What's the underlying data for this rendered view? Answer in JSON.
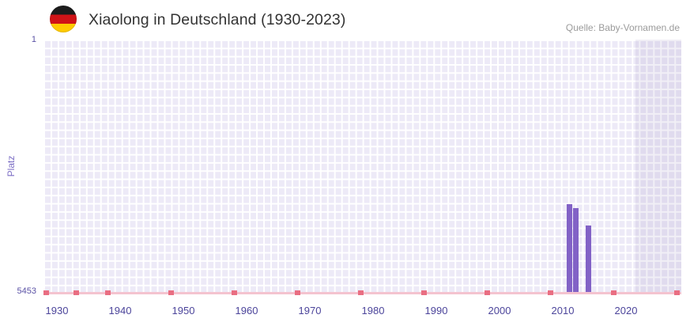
{
  "header": {
    "title": "Xiaolong in Deutschland (1930-2023)",
    "source": "Quelle: Baby-Vornamen.de",
    "flag": "germany-flag"
  },
  "chart_data": {
    "type": "bar",
    "title": "Xiaolong in Deutschland (1930-2023)",
    "ylabel": "Platz",
    "xlabel": "",
    "grid": true,
    "legend": "none",
    "y_axis": {
      "min": 1,
      "max": 5453,
      "inverted": true,
      "tick_labels": [
        "1",
        "5453"
      ]
    },
    "x_axis": {
      "tick_labels": [
        "1930",
        "1940",
        "1950",
        "1960",
        "1970",
        "1980",
        "1990",
        "2000",
        "2010",
        "2020"
      ],
      "start_year": 1928,
      "end_year": 2029
    },
    "series": [
      {
        "name": "Platz",
        "points": [
          {
            "year": 2011,
            "rank": 3545
          },
          {
            "year": 2012,
            "rank": 3630
          },
          {
            "year": 2014,
            "rank": 4005
          }
        ]
      }
    ],
    "unranked_marker_years": [
      1928,
      1933,
      1938,
      1948,
      1958,
      1968,
      1978,
      1988,
      1998,
      2008,
      2018,
      2028
    ],
    "recent_band_from_year": 2022,
    "colors": {
      "bar": "#8262c6",
      "plot_bg": "#edeaf7",
      "grid_line": "#ffffff",
      "recent_band": "rgba(99,79,155,0.09)",
      "axis_line": "#f4c3cf",
      "axis_marker": "#e96e82",
      "x_tick_text": "#4c459b",
      "y_tick_text": "#5a51a5",
      "y_label_text": "#7c6ec5",
      "title_text": "#333333",
      "source_text": "#9b9b9b"
    }
  }
}
